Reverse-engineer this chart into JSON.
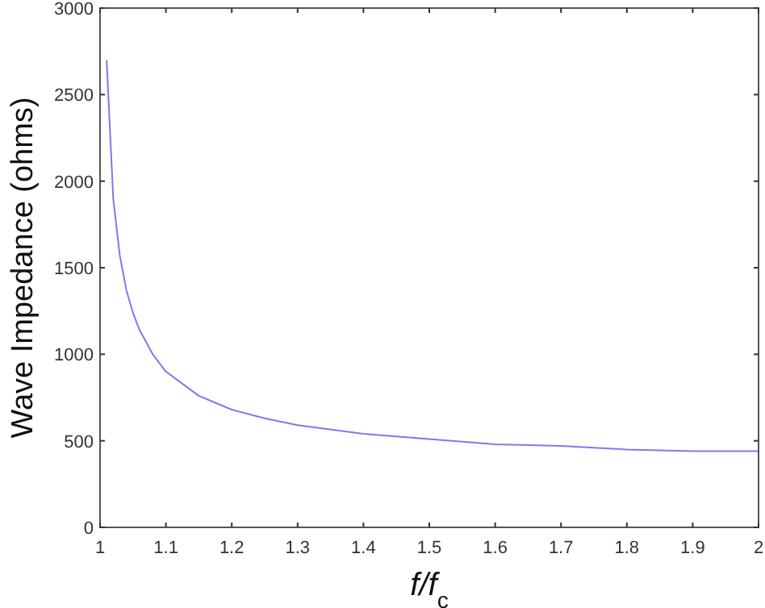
{
  "chart_data": {
    "type": "line",
    "xlabel": "f/f$_{c}$",
    "ylabel": "Wave Impedance (ohms)",
    "x": [
      1.01,
      1.02,
      1.03,
      1.04,
      1.05,
      1.06,
      1.08,
      1.1,
      1.15,
      1.2,
      1.25,
      1.3,
      1.4,
      1.5,
      1.6,
      1.7,
      1.8,
      1.9,
      2
    ],
    "series": [
      {
        "color": "#7b7bee",
        "values": [
          2700,
          1900,
          1570,
          1370,
          1240,
          1140,
          1000,
          900,
          760,
          680,
          630,
          590,
          540,
          510,
          480,
          470,
          450,
          440,
          440
        ]
      }
    ],
    "xlim": [
      1,
      2
    ],
    "ylim": [
      0,
      3000
    ],
    "xticks": [
      1,
      1.1,
      1.2,
      1.3,
      1.4,
      1.5,
      1.6,
      1.7,
      1.8,
      1.9,
      2
    ],
    "yticks": [
      0,
      500,
      1000,
      1500,
      2000,
      2500,
      3000
    ],
    "grid": false,
    "marker": "none",
    "line_style": "solid"
  }
}
